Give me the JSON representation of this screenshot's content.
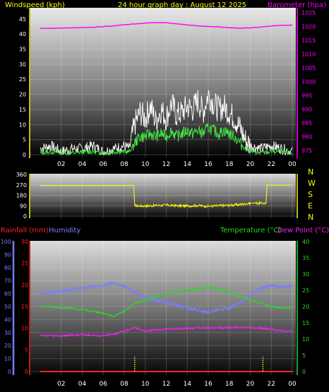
{
  "header": {
    "left_title": "Windspeed (kph)",
    "center_title": "24 hour graph day : August 12 2025",
    "right_title": "Barometer (hpa)"
  },
  "colors": {
    "yellow": "#ffff00",
    "magenta": "#ff00ff",
    "wind_white": "#ffffff",
    "wind_green": "#44ee44",
    "humidity": "#7b7bff",
    "temperature": "#22dd22",
    "dewpoint": "#ee22ee",
    "rainfall": "#ff2222",
    "background": "#000000"
  },
  "chart_data": [
    {
      "type": "line",
      "panel": "wind_barometer",
      "x_ticks": [
        "02",
        "04",
        "06",
        "08",
        "10",
        "12",
        "14",
        "16",
        "18",
        "20",
        "22",
        "00"
      ],
      "left_axis": {
        "label": "Windspeed (kph)",
        "ticks": [
          0,
          5,
          10,
          15,
          20,
          25,
          30,
          35,
          40,
          45
        ],
        "ylim": [
          0,
          48
        ]
      },
      "right_axis": {
        "label": "Barometer (hpa)",
        "ticks": [
          975,
          980,
          985,
          990,
          995,
          1000,
          1005,
          1010,
          1015,
          1020,
          1025
        ],
        "ylim": [
          973.5,
          1026
        ]
      },
      "series": [
        {
          "key": "barometer",
          "axis": "right",
          "x": [
            0,
            1,
            2,
            3,
            4,
            5,
            6,
            7,
            8,
            9,
            10,
            11,
            12,
            13,
            14,
            15,
            16,
            17,
            18,
            19,
            20,
            21,
            22,
            23,
            24
          ],
          "values": [
            1019.3,
            1019.3,
            1019.4,
            1019.5,
            1019.6,
            1019.7,
            1019.9,
            1020.2,
            1020.6,
            1020.9,
            1021.2,
            1021.4,
            1021.3,
            1021.0,
            1020.6,
            1020.2,
            1020.0,
            1019.8,
            1019.5,
            1019.4,
            1019.5,
            1019.8,
            1020.2,
            1020.4,
            1020.5
          ]
        },
        {
          "key": "wind_gust",
          "axis": "left",
          "x": [
            0,
            1,
            2,
            3,
            4,
            5,
            6,
            7,
            8,
            8.5,
            9,
            9.5,
            10,
            10.5,
            11,
            11.5,
            12,
            12.5,
            13,
            13.5,
            14,
            14.5,
            15,
            15.5,
            16,
            16.5,
            17,
            17.5,
            18,
            18.5,
            19,
            19.5,
            20,
            21,
            22,
            23,
            24
          ],
          "values": [
            2,
            3,
            1,
            2,
            2,
            3,
            1,
            2,
            3,
            2,
            10,
            14,
            12,
            16,
            11,
            15,
            12,
            17,
            13,
            14,
            16,
            15,
            18,
            14,
            20,
            17,
            15,
            16,
            14,
            12,
            9,
            5,
            3,
            2,
            3,
            2,
            1
          ]
        },
        {
          "key": "wind_avg",
          "axis": "left",
          "x": [
            0,
            1,
            2,
            3,
            4,
            5,
            6,
            7,
            8,
            8.5,
            9,
            9.5,
            10,
            10.5,
            11,
            11.5,
            12,
            12.5,
            13,
            13.5,
            14,
            14.5,
            15,
            15.5,
            16,
            16.5,
            17,
            17.5,
            18,
            18.5,
            19,
            19.5,
            20,
            21,
            22,
            23,
            24
          ],
          "values": [
            0.5,
            1,
            0.5,
            0.5,
            1,
            1,
            0.5,
            1,
            1,
            1,
            4,
            6,
            6,
            7,
            6,
            7,
            6,
            8,
            6,
            7,
            8,
            7,
            8,
            7,
            9,
            8,
            7,
            8,
            7,
            6,
            4,
            2,
            1,
            0.5,
            1,
            1,
            0.5
          ]
        }
      ]
    },
    {
      "type": "line",
      "panel": "wind_direction",
      "y_ticks": [
        0,
        90,
        180,
        270,
        360
      ],
      "ylim": [
        0,
        360
      ],
      "compass_labels": [
        "N",
        "W",
        "S",
        "E",
        "N"
      ],
      "series": [
        {
          "key": "direction",
          "x": [
            0,
            8.9,
            9.0,
            10,
            11,
            12,
            13,
            14,
            15,
            16,
            17,
            18,
            19,
            20,
            20.4,
            21.5,
            21.6,
            24
          ],
          "values": [
            265,
            265,
            90,
            88,
            92,
            95,
            90,
            88,
            92,
            85,
            90,
            94,
            100,
            112,
            112,
            112,
            268,
            268
          ]
        }
      ]
    },
    {
      "type": "line",
      "panel": "temp_humidity_rain",
      "left_axis_label": "Humidity",
      "rain_label": "Rainfall (mm)",
      "humidity_ticks": [
        0,
        10,
        20,
        30,
        40,
        50,
        60,
        70,
        80,
        90,
        100
      ],
      "rain_ticks": [
        0,
        5,
        10,
        15,
        20,
        25,
        30
      ],
      "temp_label": "Temperature (°C)",
      "dewpoint_label": "Dew Point (°C)",
      "temp_ticks": [
        0,
        5,
        10,
        15,
        20,
        25,
        30,
        35,
        40
      ],
      "series": [
        {
          "key": "humidity",
          "axis": "humidity",
          "x": [
            0,
            1,
            2,
            3,
            4,
            5,
            6,
            7,
            8,
            9,
            10,
            11,
            12,
            13,
            14,
            15,
            16,
            17,
            18,
            19,
            20,
            21,
            22,
            23,
            24
          ],
          "values": [
            60,
            61,
            62,
            63,
            64,
            65,
            66,
            68,
            66,
            61,
            56,
            55,
            53,
            51,
            49,
            47,
            46,
            47,
            49,
            53,
            59,
            64,
            66,
            65,
            66
          ]
        },
        {
          "key": "temperature",
          "axis": "temp",
          "x": [
            0,
            1,
            2,
            3,
            4,
            5,
            6,
            7,
            8,
            9,
            10,
            11,
            12,
            13,
            14,
            15,
            16,
            17,
            18,
            19,
            20,
            21,
            22,
            23,
            24
          ],
          "values": [
            20,
            20,
            19.5,
            19.5,
            19,
            18.5,
            18,
            17,
            18.5,
            21,
            22,
            23,
            24,
            24.5,
            25,
            25.5,
            25.8,
            25.5,
            24.5,
            23,
            22,
            21,
            20,
            19.5,
            19.5
          ]
        },
        {
          "key": "dewpoint",
          "axis": "temp",
          "x": [
            0,
            1,
            2,
            3,
            4,
            5,
            6,
            7,
            8,
            9,
            10,
            11,
            12,
            13,
            14,
            15,
            16,
            17,
            18,
            19,
            20,
            21,
            22,
            23,
            24
          ],
          "values": [
            11,
            11,
            11,
            11.2,
            11.3,
            11.2,
            11,
            11.5,
            12.5,
            13.5,
            12.5,
            12.8,
            13,
            13.2,
            13.3,
            13.5,
            13.4,
            13.4,
            13.5,
            13.6,
            13.5,
            13.3,
            13,
            12.5,
            12.5
          ]
        },
        {
          "key": "rainfall",
          "axis": "rain",
          "x": [
            0,
            24
          ],
          "values": [
            0,
            0
          ]
        },
        {
          "key": "rain_rate_markers",
          "axis": "rain",
          "x": [
            9.0,
            21.2
          ],
          "values": [
            3.5,
            3.5
          ]
        }
      ]
    }
  ]
}
